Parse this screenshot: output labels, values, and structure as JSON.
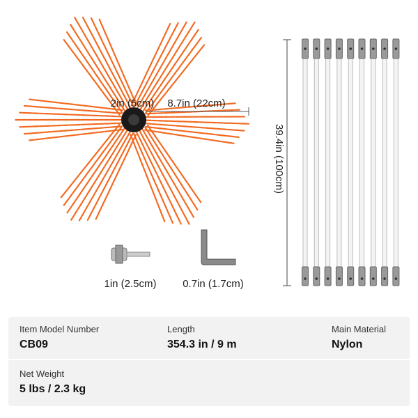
{
  "dimension_labels": {
    "hub": "2in (5cm)",
    "bristle": "8.7in (22cm)",
    "rod": "39.4in (100cm)",
    "connector": "1in (2.5cm)",
    "wrench": "0.7in (1.7cm)"
  },
  "specs": [
    [
      {
        "label": "Item Model Number",
        "value": "CB09"
      },
      {
        "label": "Length",
        "value": "354.3 in / 9 m"
      },
      {
        "label": "Main Material",
        "value": "Nylon"
      }
    ],
    [
      {
        "label": "Net Weight",
        "value": "5 lbs / 2.3 kg"
      }
    ]
  ]
}
